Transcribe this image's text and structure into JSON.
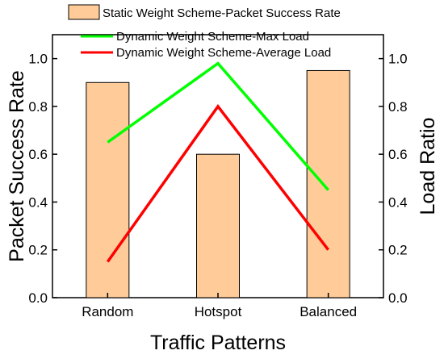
{
  "chart_data": {
    "type": "bar",
    "categories": [
      "Random",
      "Hotspot",
      "Balanced"
    ],
    "xlabel": "Traffic Patterns",
    "ylabel_left": "Packet Success Rate",
    "ylabel_right": "Load Ratio",
    "ylim_left": [
      0.0,
      1.1
    ],
    "ylim_right": [
      0.0,
      1.1
    ],
    "yticks_left": [
      "0.0",
      "0.2",
      "0.4",
      "0.6",
      "0.8",
      "1.0"
    ],
    "yticks_right": [
      "0.0",
      "0.2",
      "0.4",
      "0.6",
      "0.8",
      "1.0"
    ],
    "legend_position": "top",
    "series": [
      {
        "name": "Static Weight Scheme-Packet Success Rate",
        "kind": "bar",
        "axis": "left",
        "color": "#FFCC99",
        "values": [
          0.9,
          0.6,
          0.95
        ]
      },
      {
        "name": "Dynamic Weight Scheme-Max Load",
        "kind": "line",
        "axis": "right",
        "color": "#00FF00",
        "values": [
          0.65,
          0.98,
          0.45
        ]
      },
      {
        "name": "Dynamic Weight Scheme-Average Load",
        "kind": "line",
        "axis": "right",
        "color": "#FF0000",
        "values": [
          0.15,
          0.8,
          0.2
        ]
      }
    ]
  }
}
